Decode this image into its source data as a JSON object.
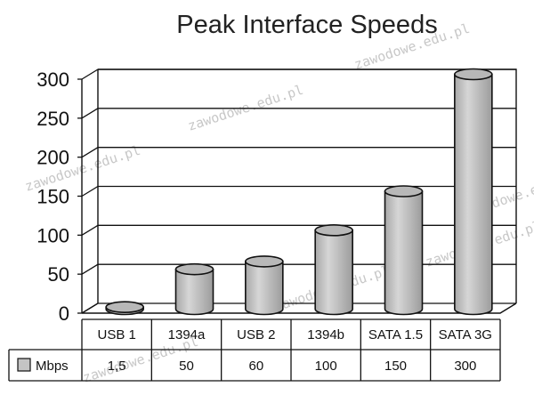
{
  "chart_data": {
    "type": "bar",
    "title": "Peak Interface Speeds",
    "categories": [
      "USB 1",
      "1394a",
      "USB 2",
      "1394b",
      "SATA 1.5",
      "SATA 3G"
    ],
    "series": [
      {
        "name": "Mbps",
        "values": [
          1.5,
          50,
          60,
          100,
          150,
          300
        ],
        "labels": [
          "1,5",
          "50",
          "60",
          "100",
          "150",
          "300"
        ]
      }
    ],
    "ylim": [
      0,
      300
    ],
    "yticks": [
      0,
      50,
      100,
      150,
      200,
      250,
      300
    ],
    "grid": true,
    "legend": "data-table-left",
    "bar_style": "3d-cylinder",
    "colors": {
      "bar": "#c4c4c4",
      "bar_top": "#b8b8b8",
      "stroke": "#111111",
      "grid": "#111111"
    }
  },
  "watermark": "zawodowe.edu.pl"
}
